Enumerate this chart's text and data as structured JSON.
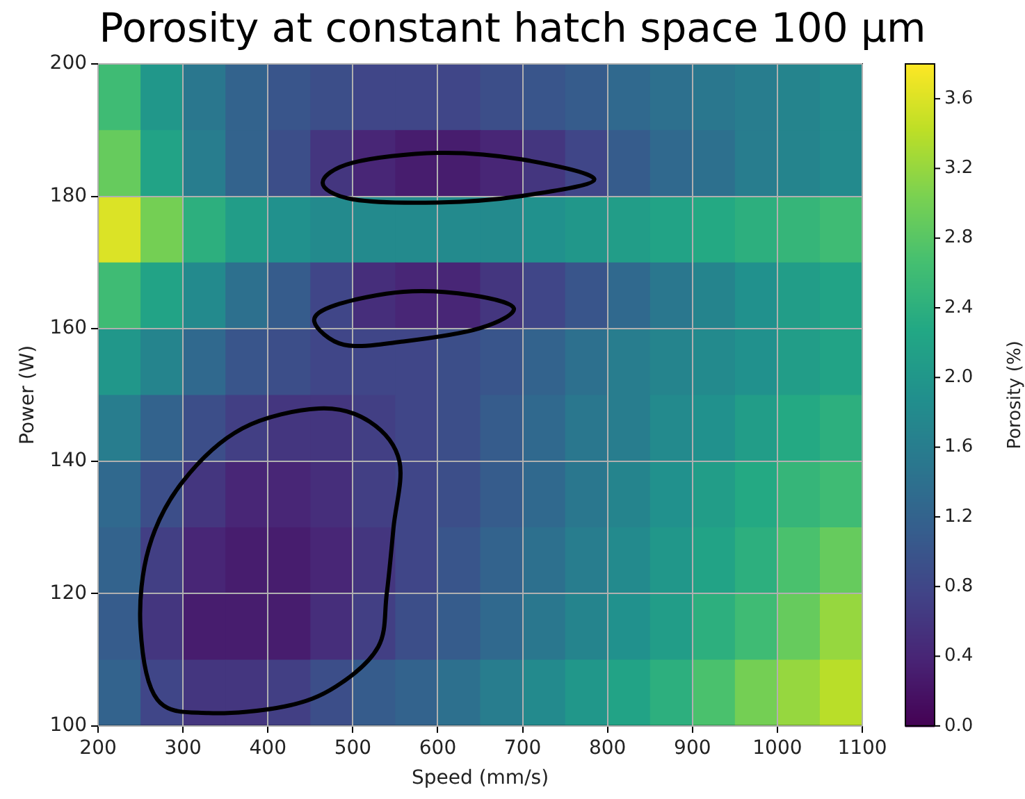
{
  "chart_data": {
    "type": "heatmap",
    "title": "Porosity at constant hatch space 100 µm",
    "xlabel": "Speed (mm/s)",
    "ylabel": "Power (W)",
    "clabel": "Porosity (%)",
    "x": [
      225,
      275,
      325,
      375,
      425,
      475,
      525,
      575,
      625,
      675,
      725,
      775,
      825,
      875,
      925,
      975,
      1025,
      1075
    ],
    "y": [
      195,
      185,
      175,
      165,
      155,
      145,
      135,
      125,
      115,
      105
    ],
    "cells": [
      [
        2.6,
        2.0,
        1.5,
        1.2,
        1.0,
        0.9,
        0.8,
        0.8,
        0.8,
        0.9,
        1.0,
        1.1,
        1.3,
        1.4,
        1.5,
        1.6,
        1.7,
        1.8
      ],
      [
        2.9,
        2.2,
        1.6,
        1.2,
        0.9,
        0.6,
        0.4,
        0.3,
        0.3,
        0.4,
        0.6,
        0.8,
        1.1,
        1.3,
        1.4,
        1.6,
        1.7,
        1.8
      ],
      [
        3.6,
        3.0,
        2.4,
        2.1,
        1.9,
        1.8,
        1.8,
        1.8,
        1.8,
        1.8,
        1.9,
        2.0,
        2.1,
        2.2,
        2.3,
        2.4,
        2.5,
        2.6
      ],
      [
        2.6,
        2.2,
        1.8,
        1.4,
        1.1,
        0.8,
        0.5,
        0.4,
        0.4,
        0.6,
        0.8,
        1.0,
        1.3,
        1.5,
        1.7,
        1.9,
        2.1,
        2.2
      ],
      [
        2.0,
        1.7,
        1.3,
        1.0,
        0.9,
        0.8,
        0.8,
        0.8,
        0.9,
        1.0,
        1.2,
        1.4,
        1.6,
        1.7,
        1.8,
        1.9,
        2.1,
        2.2
      ],
      [
        1.6,
        1.2,
        0.9,
        0.7,
        0.6,
        0.6,
        0.7,
        0.8,
        0.9,
        1.1,
        1.3,
        1.5,
        1.6,
        1.8,
        1.9,
        2.1,
        2.3,
        2.4
      ],
      [
        1.3,
        0.9,
        0.6,
        0.4,
        0.4,
        0.5,
        0.7,
        0.8,
        0.9,
        1.1,
        1.3,
        1.5,
        1.7,
        1.9,
        2.1,
        2.3,
        2.5,
        2.6
      ],
      [
        1.2,
        0.7,
        0.4,
        0.3,
        0.3,
        0.4,
        0.6,
        0.8,
        1.0,
        1.2,
        1.4,
        1.6,
        1.8,
        2.0,
        2.2,
        2.4,
        2.7,
        2.9
      ],
      [
        1.1,
        0.6,
        0.3,
        0.3,
        0.3,
        0.5,
        0.7,
        0.9,
        1.1,
        1.3,
        1.5,
        1.7,
        1.9,
        2.1,
        2.4,
        2.6,
        2.9,
        3.2
      ],
      [
        1.2,
        0.8,
        0.6,
        0.6,
        0.7,
        0.9,
        1.1,
        1.2,
        1.4,
        1.6,
        1.8,
        2.0,
        2.2,
        2.4,
        2.7,
        3.0,
        3.2,
        3.4
      ]
    ],
    "xlim": [
      200,
      1100
    ],
    "xticks": [
      200,
      300,
      400,
      500,
      600,
      700,
      800,
      900,
      1000,
      1100
    ],
    "ylim": [
      100,
      200
    ],
    "yticks": [
      100,
      120,
      140,
      160,
      180,
      200
    ],
    "clim": [
      0,
      3.8
    ],
    "cticks": [
      {
        "value": 0,
        "label": "0.0"
      },
      0.4,
      0.8,
      1.2,
      1.6,
      {
        "value": 2,
        "label": "2.0"
      },
      2.4,
      2.8,
      3.2,
      3.6
    ],
    "grid": true
  }
}
